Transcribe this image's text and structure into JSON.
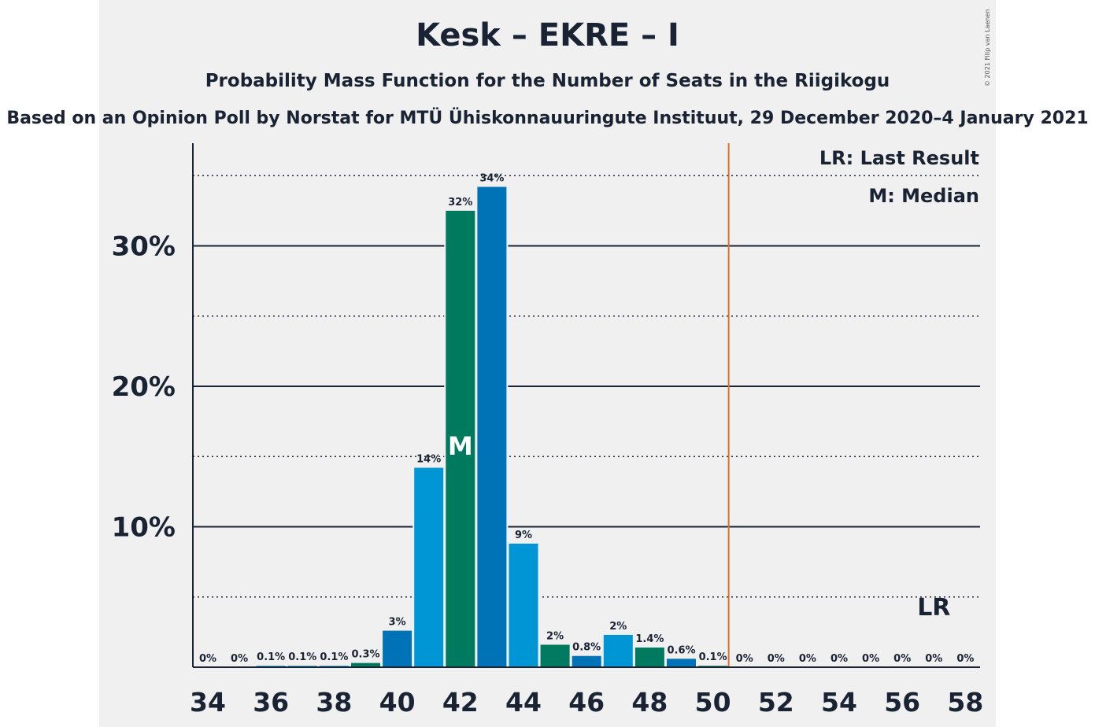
{
  "chart_data": {
    "type": "bar",
    "title": "Kesk – EKRE – I",
    "subtitle": "Probability Mass Function for the Number of Seats in the Riigikogu",
    "source": "Based on an Opinion Poll by Norstat for MTÜ Ühiskonnauuringute Instituut, 29 December 2020–4 January 2021",
    "copyright": "© 2021 Filip van Laenen",
    "legend": [
      "LR: Last Result",
      "M: Median"
    ],
    "x_tick_labels": [
      "34",
      "36",
      "38",
      "40",
      "42",
      "44",
      "46",
      "48",
      "50",
      "52",
      "54",
      "56",
      "58"
    ],
    "y_tick_labels": [
      "10%",
      "20%",
      "30%"
    ],
    "ylim": [
      0,
      37
    ],
    "majority_line": 50.5,
    "median_seat": 42,
    "median_label": "M",
    "last_result_seat": 57,
    "last_result_label": "LR",
    "bars": [
      {
        "seats": 34,
        "value": 0,
        "label": "0%"
      },
      {
        "seats": 35,
        "value": 0,
        "label": "0%"
      },
      {
        "seats": 36,
        "value": 0.1,
        "label": "0.1%"
      },
      {
        "seats": 37,
        "value": 0.1,
        "label": "0.1%"
      },
      {
        "seats": 38,
        "value": 0.1,
        "label": "0.1%"
      },
      {
        "seats": 39,
        "value": 0.3,
        "label": "0.3%"
      },
      {
        "seats": 40,
        "value": 2.6,
        "label": "3%"
      },
      {
        "seats": 41,
        "value": 14.2,
        "label": "14%"
      },
      {
        "seats": 42,
        "value": 32.5,
        "label": "32%"
      },
      {
        "seats": 43,
        "value": 34.2,
        "label": "34%"
      },
      {
        "seats": 44,
        "value": 8.8,
        "label": "9%"
      },
      {
        "seats": 45,
        "value": 1.6,
        "label": "2%"
      },
      {
        "seats": 46,
        "value": 0.8,
        "label": "0.8%"
      },
      {
        "seats": 47,
        "value": 2.3,
        "label": "2%"
      },
      {
        "seats": 48,
        "value": 1.4,
        "label": "1.4%"
      },
      {
        "seats": 49,
        "value": 0.6,
        "label": "0.6%"
      },
      {
        "seats": 50,
        "value": 0.1,
        "label": "0.1%"
      },
      {
        "seats": 51,
        "value": 0,
        "label": "0%"
      },
      {
        "seats": 52,
        "value": 0,
        "label": "0%"
      },
      {
        "seats": 53,
        "value": 0,
        "label": "0%"
      },
      {
        "seats": 54,
        "value": 0,
        "label": "0%"
      },
      {
        "seats": 55,
        "value": 0,
        "label": "0%"
      },
      {
        "seats": 56,
        "value": 0,
        "label": "0%"
      },
      {
        "seats": 57,
        "value": 0,
        "label": "0%"
      },
      {
        "seats": 58,
        "value": 0,
        "label": "0%"
      }
    ],
    "colors": {
      "light_blue": "#0096d6",
      "dark_blue": "#0072b8",
      "green": "#007a5e",
      "majority_line": "#d8722e",
      "text": "#1a2333"
    }
  }
}
